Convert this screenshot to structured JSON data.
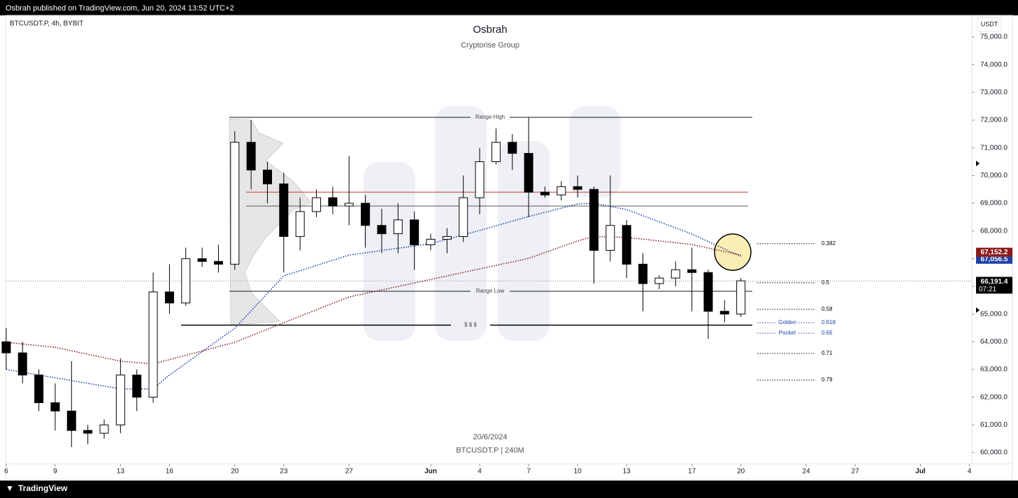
{
  "header": {
    "published": "Osbrah published on TradingView.com, Jun 20, 2024 13:52 UTC+2",
    "symbol": "BTCUSDT.P, 4h, BYBIT",
    "currency": "USDT",
    "brand": "TradingView"
  },
  "chart_data": {
    "type": "candlestick",
    "title": "Osbrah",
    "subtitle": "Cryptorise Group",
    "watermark": [
      "20/6/2024",
      "BTCUSDT.P | 240M"
    ],
    "x": [
      "2024-05-06",
      "2024-05-07",
      "2024-05-08",
      "2024-05-09",
      "2024-05-10",
      "2024-05-11",
      "2024-05-12",
      "2024-05-13",
      "2024-05-14",
      "2024-05-15",
      "2024-05-16",
      "2024-05-17",
      "2024-05-18",
      "2024-05-19",
      "2024-05-20",
      "2024-05-21",
      "2024-05-22",
      "2024-05-23",
      "2024-05-24",
      "2024-05-25",
      "2024-05-26",
      "2024-05-27",
      "2024-05-28",
      "2024-05-29",
      "2024-05-30",
      "2024-05-31",
      "2024-06-01",
      "2024-06-02",
      "2024-06-03",
      "2024-06-04",
      "2024-06-05",
      "2024-06-06",
      "2024-06-07",
      "2024-06-08",
      "2024-06-09",
      "2024-06-10",
      "2024-06-11",
      "2024-06-12",
      "2024-06-13",
      "2024-06-14",
      "2024-06-15",
      "2024-06-16",
      "2024-06-17",
      "2024-06-18",
      "2024-06-19",
      "2024-06-20"
    ],
    "ohlc": [
      [
        64000,
        64500,
        63000,
        63600
      ],
      [
        63600,
        64000,
        62500,
        62800
      ],
      [
        62800,
        63000,
        61500,
        61800
      ],
      [
        61800,
        62500,
        60800,
        61500
      ],
      [
        61500,
        63300,
        60200,
        60800
      ],
      [
        60800,
        61000,
        60300,
        60700
      ],
      [
        60700,
        61200,
        60500,
        61000
      ],
      [
        61000,
        63400,
        60700,
        62800
      ],
      [
        62800,
        63000,
        61500,
        62000
      ],
      [
        62000,
        66500,
        61800,
        65800
      ],
      [
        65800,
        66800,
        65000,
        65400
      ],
      [
        65400,
        67400,
        65300,
        67000
      ],
      [
        67000,
        67400,
        66700,
        66900
      ],
      [
        66900,
        67500,
        66500,
        66800
      ],
      [
        66800,
        71600,
        66600,
        71200
      ],
      [
        71200,
        72000,
        69500,
        70200
      ],
      [
        70200,
        70500,
        69000,
        69700
      ],
      [
        69700,
        70100,
        66500,
        67800
      ],
      [
        67800,
        69200,
        67300,
        68700
      ],
      [
        68700,
        69500,
        68500,
        69200
      ],
      [
        69200,
        69600,
        68600,
        68900
      ],
      [
        68900,
        70700,
        68200,
        69000
      ],
      [
        69000,
        69300,
        67400,
        68200
      ],
      [
        68200,
        68800,
        67200,
        67900
      ],
      [
        67900,
        69000,
        67200,
        68400
      ],
      [
        68400,
        68700,
        66600,
        67500
      ],
      [
        67500,
        67900,
        67300,
        67700
      ],
      [
        67700,
        68100,
        67200,
        67800
      ],
      [
        67800,
        70000,
        67600,
        69200
      ],
      [
        69200,
        71000,
        68600,
        70500
      ],
      [
        70500,
        71700,
        70400,
        71200
      ],
      [
        71200,
        71500,
        70200,
        70800
      ],
      [
        70800,
        72100,
        68500,
        69400
      ],
      [
        69400,
        69600,
        69200,
        69300
      ],
      [
        69300,
        69800,
        69100,
        69600
      ],
      [
        69600,
        70000,
        69200,
        69500
      ],
      [
        69500,
        69600,
        66100,
        67300
      ],
      [
        67300,
        70000,
        66900,
        68200
      ],
      [
        68200,
        68400,
        66300,
        66800
      ],
      [
        66800,
        67200,
        65100,
        66100
      ],
      [
        66100,
        66400,
        65900,
        66300
      ],
      [
        66300,
        66900,
        66000,
        66600
      ],
      [
        66600,
        67400,
        65100,
        66500
      ],
      [
        66500,
        66600,
        64100,
        65100
      ],
      [
        65100,
        65500,
        64700,
        65000
      ],
      [
        65000,
        66300,
        64900,
        66200
      ]
    ],
    "series": [
      {
        "color": "#1e3fa8",
        "x": [
          "2024-05-06",
          "2024-05-09",
          "2024-05-13",
          "2024-05-15",
          "2024-05-16",
          "2024-05-20",
          "2024-05-23",
          "2024-05-27",
          "2024-06-01",
          "2024-06-04",
          "2024-06-07",
          "2024-06-10",
          "2024-06-11",
          "2024-06-13",
          "2024-06-17",
          "2024-06-20"
        ],
        "values": [
          63000,
          62700,
          62300,
          62300,
          62800,
          64490,
          66380,
          67130,
          67540,
          68020,
          68520,
          68975,
          69000,
          68770,
          67890,
          67080
        ],
        "last_label": "67,056.5"
      },
      {
        "color": "#8b1a1a",
        "x": [
          "2024-05-06",
          "2024-05-09",
          "2024-05-13",
          "2024-05-15",
          "2024-05-20",
          "2024-05-23",
          "2024-05-27",
          "2024-06-01",
          "2024-06-04",
          "2024-06-07",
          "2024-06-10",
          "2024-06-11",
          "2024-06-13",
          "2024-06-17",
          "2024-06-20"
        ],
        "values": [
          63980,
          63800,
          63300,
          63200,
          63980,
          64690,
          65620,
          66250,
          66630,
          67010,
          67640,
          67800,
          67770,
          67510,
          67130
        ],
        "last_label": "67,152.2"
      }
    ],
    "levels": [
      {
        "label": "Range High",
        "value": 72100,
        "color": "#131722"
      },
      {
        "label": "Range Low",
        "value": 65825,
        "color": "#131722"
      },
      {
        "label": "$ $ $",
        "value": 64600,
        "color": "#000000"
      },
      {
        "value": 69400,
        "color": "#c0392b"
      },
      {
        "value": 68900,
        "color": "#555555"
      }
    ],
    "fib": [
      {
        "label": "0.382",
        "value": 67540
      },
      {
        "label": "0.5",
        "value": 66130
      },
      {
        "label": "0.58",
        "value": 65170
      },
      {
        "label": "0.618",
        "value": 64690,
        "tag": "Golden",
        "color": "#1e3fa8"
      },
      {
        "label": "0.65",
        "value": 64310,
        "tag": "Pocket",
        "color": "#1e3fa8"
      },
      {
        "label": "0.71",
        "value": 63580
      },
      {
        "label": "0.79",
        "value": 62620
      }
    ],
    "last_price": {
      "value": 66191.4,
      "label": "66,191.4",
      "countdown": "07:21"
    },
    "ylim": [
      60000,
      75000
    ],
    "yticks": [
      {
        "value": 60000,
        "label": "60,000.0"
      },
      {
        "value": 61000,
        "label": "61,000.0"
      },
      {
        "value": 62000,
        "label": "62,000.0"
      },
      {
        "value": 63000,
        "label": "63,000.0"
      },
      {
        "value": 64000,
        "label": "64,000.0"
      },
      {
        "value": 65000,
        "label": "65,000.0"
      },
      {
        "value": 66000,
        "label": "66,000.0"
      },
      {
        "value": 67000,
        "label": "67,000.0"
      },
      {
        "value": 68000,
        "label": "68,000.0"
      },
      {
        "value": 69000,
        "label": "69,000.0"
      },
      {
        "value": 70000,
        "label": "70,000.0"
      },
      {
        "value": 71000,
        "label": "71,000.0"
      },
      {
        "value": 72000,
        "label": "72,000.0"
      },
      {
        "value": 73000,
        "label": "73,000.0"
      },
      {
        "value": 74000,
        "label": "74,000.0"
      },
      {
        "value": 75000,
        "label": "75,000.0"
      }
    ],
    "xticks": [
      {
        "value": "2024-05-06",
        "label": "6"
      },
      {
        "value": "2024-05-09",
        "label": "9"
      },
      {
        "value": "2024-05-13",
        "label": "13"
      },
      {
        "value": "2024-05-16",
        "label": "16"
      },
      {
        "value": "2024-05-20",
        "label": "20"
      },
      {
        "value": "2024-05-23",
        "label": "23"
      },
      {
        "value": "2024-05-27",
        "label": "27"
      },
      {
        "value": "2024-06-01",
        "label": "Jun"
      },
      {
        "value": "2024-06-04",
        "label": "4"
      },
      {
        "value": "2024-06-07",
        "label": "7"
      },
      {
        "value": "2024-06-10",
        "label": "10"
      },
      {
        "value": "2024-06-13",
        "label": "13"
      },
      {
        "value": "2024-06-17",
        "label": "17"
      },
      {
        "value": "2024-06-20",
        "label": "20"
      },
      {
        "value": "2024-06-24",
        "label": "24"
      },
      {
        "value": "2024-06-27",
        "label": "27"
      },
      {
        "value": "2024-07-01",
        "label": "Jul"
      },
      {
        "value": "2024-07-04",
        "label": "4"
      }
    ]
  }
}
